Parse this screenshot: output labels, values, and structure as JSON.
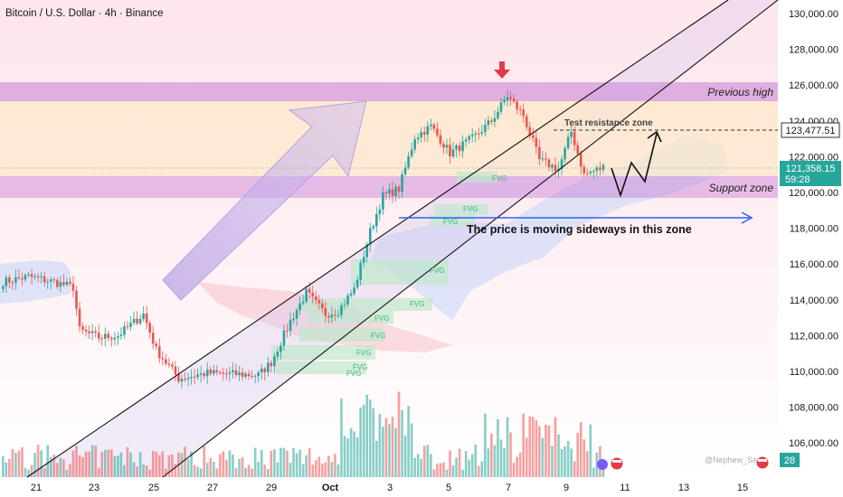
{
  "header": {
    "title": "Bitcoin / U.S. Dollar · 4h · Binance"
  },
  "price_axis": {
    "ticks": [
      "130,000.00",
      "128,000.00",
      "126,000.00",
      "124,000.00",
      "122,000.00",
      "120,000.00",
      "118,000.00",
      "116,000.00",
      "114,000.00",
      "112,000.00",
      "110,000.00",
      "108,000.00",
      "106,000.00"
    ],
    "level_label": "123,477.51",
    "current_price": "121,358.15",
    "countdown": "59:28",
    "volume_badge": "28"
  },
  "time_axis": {
    "labels": [
      "21",
      "23",
      "25",
      "27",
      "29",
      "Oct",
      "3",
      "5",
      "7",
      "9",
      "11",
      "13",
      "15"
    ]
  },
  "annotations": {
    "previous_high": "Previous high",
    "test_resistance": "Test resistance zone",
    "support_zone": "Support zone",
    "sideways": "The price is moving sideways in this zone",
    "fvg": "FVG",
    "watermark": "@Nephew_Sam_"
  },
  "colors": {
    "bull": "#26a69a",
    "bear": "#ef5350",
    "zone": "#c77dd7",
    "resistance": "#fde8c8",
    "arrow": "#2962ff"
  },
  "chart_data": {
    "type": "candlestick",
    "timeframe": "4h",
    "ylim": [
      104500,
      131000
    ],
    "resistance_level": 123477.51,
    "current_price": 121358.15,
    "zones": {
      "previous_high": [
        125000,
        126000
      ],
      "support": [
        119700,
        120800
      ],
      "test_resistance": [
        121500,
        125000
      ]
    },
    "anchors": [
      {
        "x": 0,
        "close": 115000
      },
      {
        "x": 8,
        "close": 115300
      },
      {
        "x": 16,
        "close": 115000
      },
      {
        "x": 22,
        "close": 114700
      },
      {
        "x": 24,
        "close": 112300
      },
      {
        "x": 30,
        "close": 111900
      },
      {
        "x": 36,
        "close": 112000
      },
      {
        "x": 44,
        "close": 113200
      },
      {
        "x": 48,
        "close": 111200
      },
      {
        "x": 55,
        "close": 109600
      },
      {
        "x": 64,
        "close": 109900
      },
      {
        "x": 80,
        "close": 109800
      },
      {
        "x": 84,
        "close": 110500
      },
      {
        "x": 90,
        "close": 112800
      },
      {
        "x": 95,
        "close": 114400
      },
      {
        "x": 101,
        "close": 113200
      },
      {
        "x": 105,
        "close": 113400
      },
      {
        "x": 110,
        "close": 114600
      },
      {
        "x": 115,
        "close": 117800
      },
      {
        "x": 119,
        "close": 119800
      },
      {
        "x": 124,
        "close": 120200
      },
      {
        "x": 129,
        "close": 123100
      },
      {
        "x": 134,
        "close": 123700
      },
      {
        "x": 140,
        "close": 122200
      },
      {
        "x": 147,
        "close": 123000
      },
      {
        "x": 153,
        "close": 124000
      },
      {
        "x": 158,
        "close": 125400
      },
      {
        "x": 163,
        "close": 124300
      },
      {
        "x": 168,
        "close": 121800
      },
      {
        "x": 174,
        "close": 121300
      },
      {
        "x": 178,
        "close": 123400
      },
      {
        "x": 182,
        "close": 121000
      },
      {
        "x": 188,
        "close": 121400
      }
    ]
  }
}
